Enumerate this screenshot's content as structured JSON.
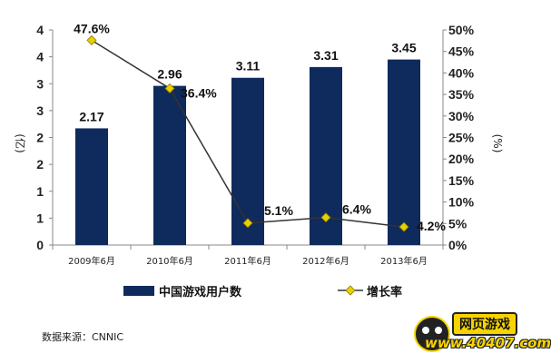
{
  "chart_data": {
    "type": "bar",
    "categories": [
      "2009年6月",
      "2010年6月",
      "2011年6月",
      "2012年6月",
      "2013年6月"
    ],
    "series": [
      {
        "name": "中国游戏用户数",
        "type": "bar",
        "axis": "left",
        "values": [
          2.17,
          2.96,
          3.11,
          3.31,
          3.45
        ],
        "color": "#0f2a5c"
      },
      {
        "name": "增长率",
        "type": "line",
        "axis": "right",
        "values": [
          47.6,
          36.4,
          5.1,
          6.4,
          4.2
        ],
        "color": "#333333",
        "marker_color": "#e8d000"
      }
    ],
    "bar_labels": [
      "2.17",
      "2.96",
      "3.11",
      "3.31",
      "3.45"
    ],
    "line_labels": [
      "47.6%",
      "36.4%",
      "5.1%",
      "6.4%",
      "4.2%"
    ],
    "left_axis": {
      "label": "(亿)",
      "ylim": [
        0,
        4
      ],
      "ticks": [
        0,
        0.5,
        1,
        1.5,
        2,
        2.5,
        3,
        3.5,
        4
      ],
      "tick_labels": [
        "0",
        "1",
        "1",
        "2",
        "2",
        "3",
        "3",
        "4",
        "4"
      ]
    },
    "right_axis": {
      "label": "(%)",
      "ylim": [
        0,
        50
      ],
      "ticks": [
        0,
        5,
        10,
        15,
        20,
        25,
        30,
        35,
        40,
        45,
        50
      ],
      "tick_labels": [
        "0%",
        "5%",
        "10%",
        "15%",
        "20%",
        "25%",
        "30%",
        "35%",
        "40%",
        "45%",
        "50%"
      ]
    },
    "legend_position": "bottom",
    "grid": false
  },
  "source_text": "数据来源：CNNIC",
  "logo": {
    "top_text": "网页游戏",
    "url_text": "www.40407.com"
  }
}
